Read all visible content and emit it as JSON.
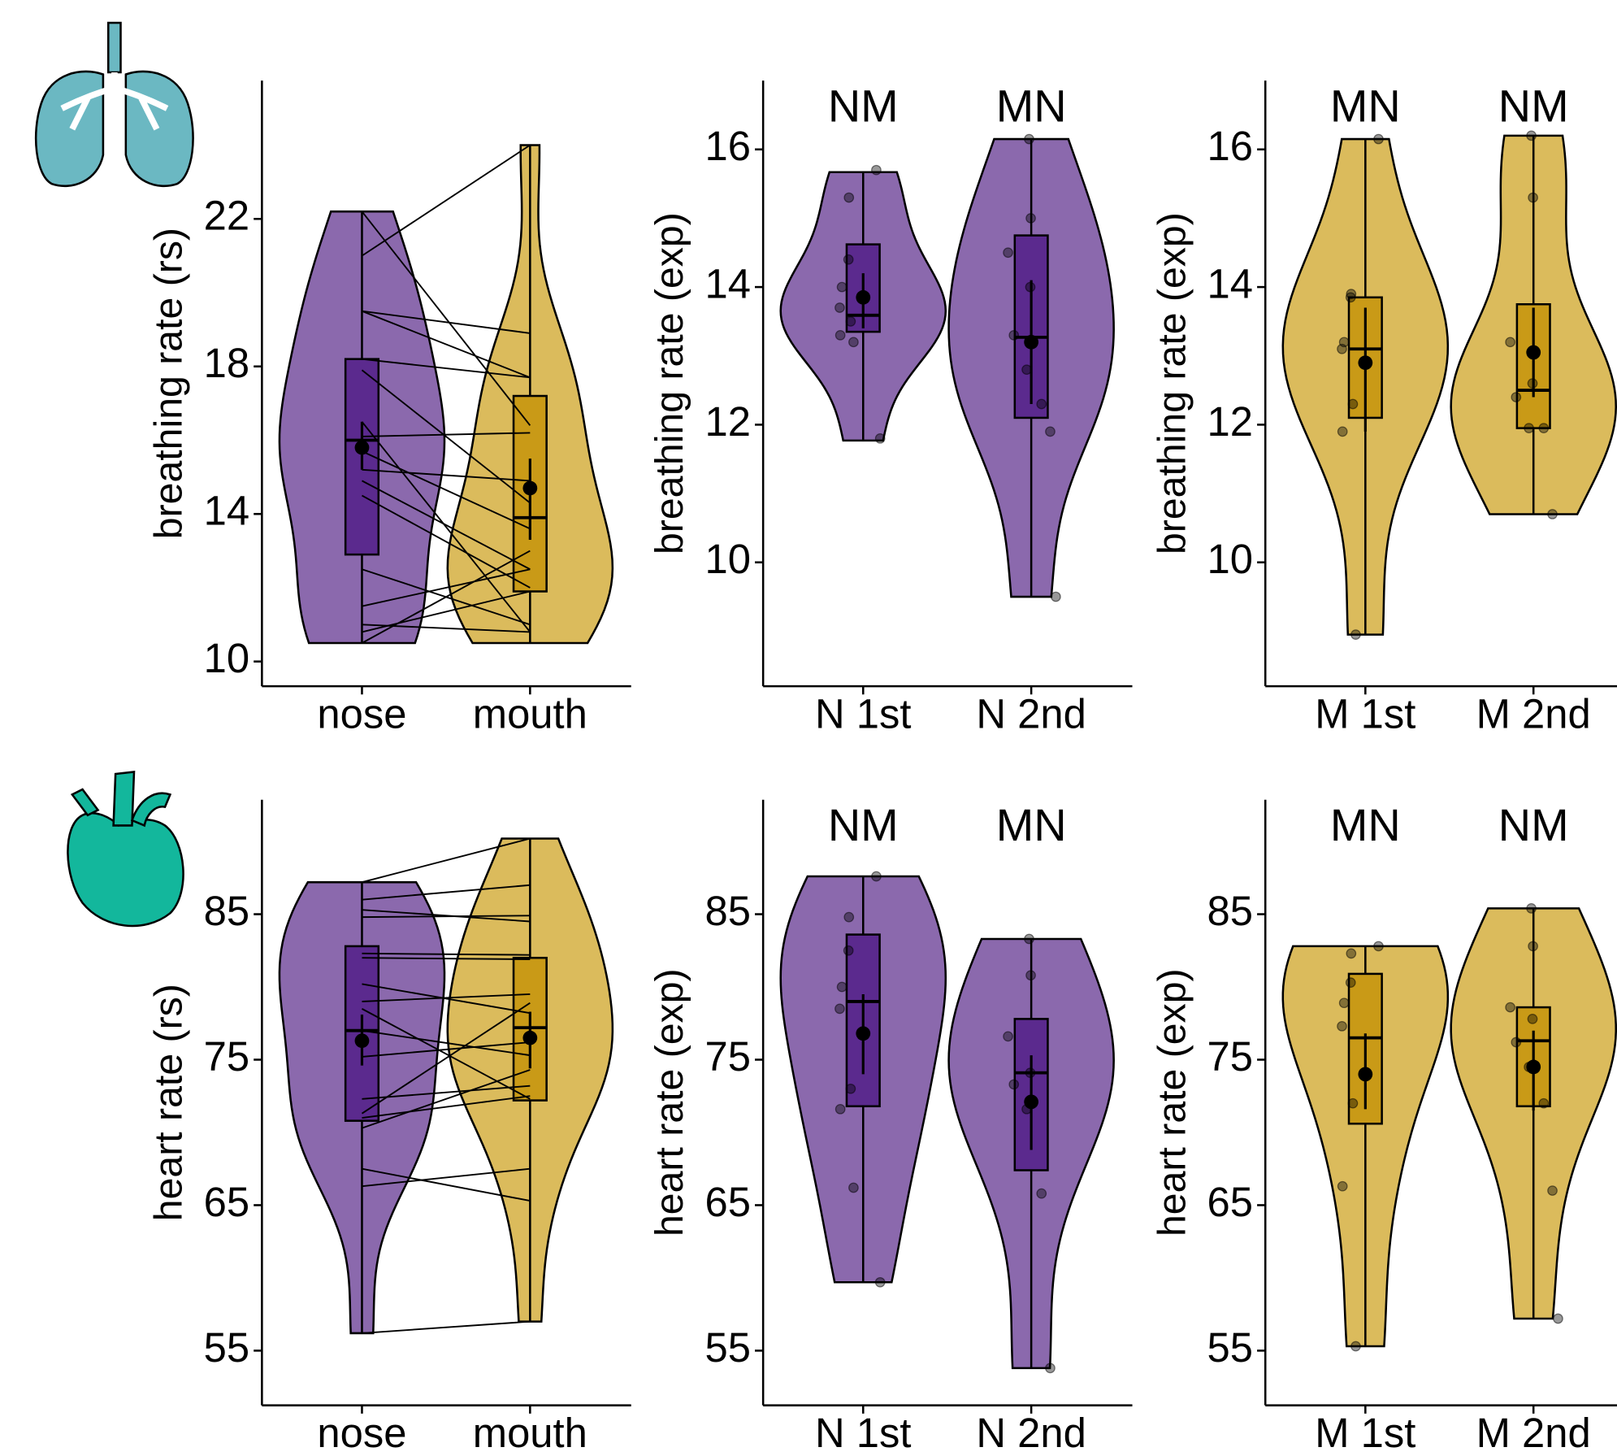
{
  "chart_data": [
    {
      "type": "violin",
      "ylabel": "breathing rate (rs)",
      "categories": [
        "nose",
        "mouth"
      ],
      "ylim": [
        9.33,
        25.75
      ],
      "yticks": [
        10,
        14,
        18,
        22
      ],
      "paired": true,
      "groups": [
        {
          "violin_color": "#8b69ad",
          "box_color": "#5b2a8e",
          "whisker_low": 10.5,
          "whisker_high": 22.2,
          "q1": 12.9,
          "median": 16.0,
          "q3": 18.2,
          "mean": 15.8,
          "ci": [
            15.2,
            16.5
          ],
          "points": [
            22.2,
            19.5,
            19.5,
            18.2,
            17.9,
            16.5,
            16.1,
            15.7,
            15.2,
            14.9,
            14.5,
            12.5,
            11.5,
            11.0,
            10.8,
            10.5,
            21.0
          ]
        },
        {
          "violin_color": "#dbbb5c",
          "box_color": "#c99a17",
          "whisker_low": 10.5,
          "whisker_high": 24.0,
          "q1": 11.9,
          "median": 13.9,
          "q3": 17.2,
          "mean": 14.7,
          "ci": [
            13.3,
            15.5
          ],
          "points": [
            16.4,
            18.9,
            17.7,
            17.7,
            14.3,
            10.8,
            16.2,
            13.6,
            14.9,
            12.5,
            12.0,
            11.0,
            12.5,
            10.8,
            11.9,
            13.0,
            24.0
          ]
        }
      ]
    },
    {
      "type": "violin",
      "ylabel": "breathing rate (exp)",
      "categories": [
        "N 1st",
        "N 2nd"
      ],
      "ylim": [
        8.2,
        17.0
      ],
      "yticks": [
        10,
        12,
        14,
        16
      ],
      "annotations": [
        "NM",
        "MN"
      ],
      "annotation_colors": [
        "#ff0000",
        "#0000ff"
      ],
      "groups": [
        {
          "violin_color": "#8b69ad",
          "box_color": "#5b2a8e",
          "whisker_low": 11.77,
          "whisker_high": 15.67,
          "q1": 13.35,
          "median": 13.59,
          "q3": 14.62,
          "mean": 13.85,
          "ci": [
            13.4,
            14.2
          ],
          "points": [
            15.7,
            15.3,
            14.4,
            14.0,
            13.7,
            13.5,
            13.3,
            13.2,
            11.8
          ]
        },
        {
          "violin_color": "#8b69ad",
          "box_color": "#5b2a8e",
          "whisker_low": 9.5,
          "whisker_high": 16.15,
          "q1": 12.1,
          "median": 13.27,
          "q3": 14.75,
          "mean": 13.2,
          "ci": [
            12.3,
            14.1
          ],
          "points": [
            16.15,
            15.0,
            14.5,
            14.0,
            13.3,
            12.8,
            12.3,
            11.9,
            9.5
          ]
        }
      ]
    },
    {
      "type": "violin",
      "ylabel": "breathing rate (exp)",
      "categories": [
        "M 1st",
        "M 2nd"
      ],
      "ylim": [
        8.2,
        17.0
      ],
      "yticks": [
        10,
        12,
        14,
        16
      ],
      "annotations": [
        "MN",
        "NM"
      ],
      "annotation_colors": [
        "#0000ff",
        "#ff0000"
      ],
      "groups": [
        {
          "violin_color": "#dbbb5c",
          "box_color": "#c99a17",
          "whisker_low": 8.95,
          "whisker_high": 16.15,
          "q1": 12.1,
          "median": 13.1,
          "q3": 13.85,
          "mean": 12.9,
          "ci": [
            11.9,
            13.7
          ],
          "points": [
            16.15,
            13.9,
            13.85,
            13.2,
            13.1,
            12.3,
            11.9,
            8.95
          ]
        },
        {
          "violin_color": "#dbbb5c",
          "box_color": "#c99a17",
          "whisker_low": 10.7,
          "whisker_high": 16.2,
          "q1": 11.95,
          "median": 12.5,
          "q3": 13.75,
          "mean": 13.05,
          "ci": [
            12.4,
            13.7
          ],
          "points": [
            16.2,
            15.3,
            13.2,
            12.6,
            12.4,
            11.95,
            11.95,
            10.7
          ]
        }
      ]
    },
    {
      "type": "violin",
      "ylabel": "heart rate (rs)",
      "categories": [
        "nose",
        "mouth"
      ],
      "ylim": [
        51.24,
        92.87
      ],
      "yticks": [
        55,
        65,
        75,
        85
      ],
      "paired": true,
      "groups": [
        {
          "violin_color": "#8b69ad",
          "box_color": "#5b2a8e",
          "whisker_low": 56.2,
          "whisker_high": 87.2,
          "q1": 70.8,
          "median": 77.0,
          "q3": 82.8,
          "mean": 76.3,
          "ci": [
            74.6,
            78.1
          ],
          "points": [
            87.2,
            85.3,
            84.8,
            82.3,
            82.0,
            80.2,
            78.5,
            77.0,
            75.2,
            72.3,
            71.3,
            71.0,
            70.3,
            67.5,
            66.3,
            56.2,
            86.0,
            79.0
          ]
        },
        {
          "violin_color": "#dbbb5c",
          "box_color": "#c99a17",
          "whisker_low": 57.0,
          "whisker_high": 90.2,
          "q1": 72.2,
          "median": 77.2,
          "q3": 82.0,
          "mean": 76.5,
          "ci": [
            74.4,
            78.3
          ],
          "points": [
            90.2,
            84.5,
            84.9,
            82.2,
            81.9,
            78.2,
            72.3,
            75.3,
            76.2,
            73.2,
            78.9,
            72.5,
            74.3,
            65.3,
            67.5,
            57.0,
            87.0,
            79.5
          ]
        }
      ]
    },
    {
      "type": "violin",
      "ylabel": "heart rate (exp)",
      "categories": [
        "N 1st",
        "N 2nd"
      ],
      "ylim": [
        51.24,
        92.87
      ],
      "yticks": [
        55,
        65,
        75,
        85
      ],
      "annotations": [
        "NM",
        "MN"
      ],
      "annotation_colors": [
        "#ff0000",
        "#0000ff"
      ],
      "groups": [
        {
          "violin_color": "#8b69ad",
          "box_color": "#5b2a8e",
          "whisker_low": 59.7,
          "whisker_high": 87.6,
          "q1": 71.8,
          "median": 79.0,
          "q3": 83.6,
          "mean": 76.8,
          "ci": [
            74.0,
            79.5
          ],
          "points": [
            87.6,
            84.8,
            82.5,
            80.0,
            78.5,
            73.0,
            71.6,
            66.2,
            59.7
          ]
        },
        {
          "violin_color": "#8b69ad",
          "box_color": "#5b2a8e",
          "whisker_low": 53.8,
          "whisker_high": 83.3,
          "q1": 67.4,
          "median": 74.1,
          "q3": 77.8,
          "mean": 72.1,
          "ci": [
            68.8,
            75.3
          ],
          "points": [
            83.3,
            80.8,
            76.6,
            74.1,
            73.3,
            71.6,
            65.8,
            53.8
          ]
        }
      ]
    },
    {
      "type": "violin",
      "ylabel": "heart rate (exp)",
      "categories": [
        "M 1st",
        "M 2nd"
      ],
      "ylim": [
        51.24,
        92.87
      ],
      "yticks": [
        55,
        65,
        75,
        85
      ],
      "annotations": [
        "MN",
        "NM"
      ],
      "annotation_colors": [
        "#0000ff",
        "#ff0000"
      ],
      "groups": [
        {
          "violin_color": "#dbbb5c",
          "box_color": "#c99a17",
          "whisker_low": 55.3,
          "whisker_high": 82.8,
          "q1": 70.6,
          "median": 76.5,
          "q3": 80.9,
          "mean": 74.0,
          "ci": [
            71.6,
            76.8
          ],
          "points": [
            82.8,
            82.3,
            80.3,
            78.9,
            77.3,
            72.0,
            66.3,
            55.3
          ]
        },
        {
          "violin_color": "#dbbb5c",
          "box_color": "#c99a17",
          "whisker_low": 57.2,
          "whisker_high": 85.4,
          "q1": 71.8,
          "median": 76.3,
          "q3": 78.6,
          "mean": 74.5,
          "ci": [
            71.5,
            77.0
          ],
          "points": [
            85.4,
            82.8,
            78.6,
            77.8,
            76.2,
            74.5,
            72.0,
            66.0,
            57.2
          ]
        }
      ]
    }
  ]
}
